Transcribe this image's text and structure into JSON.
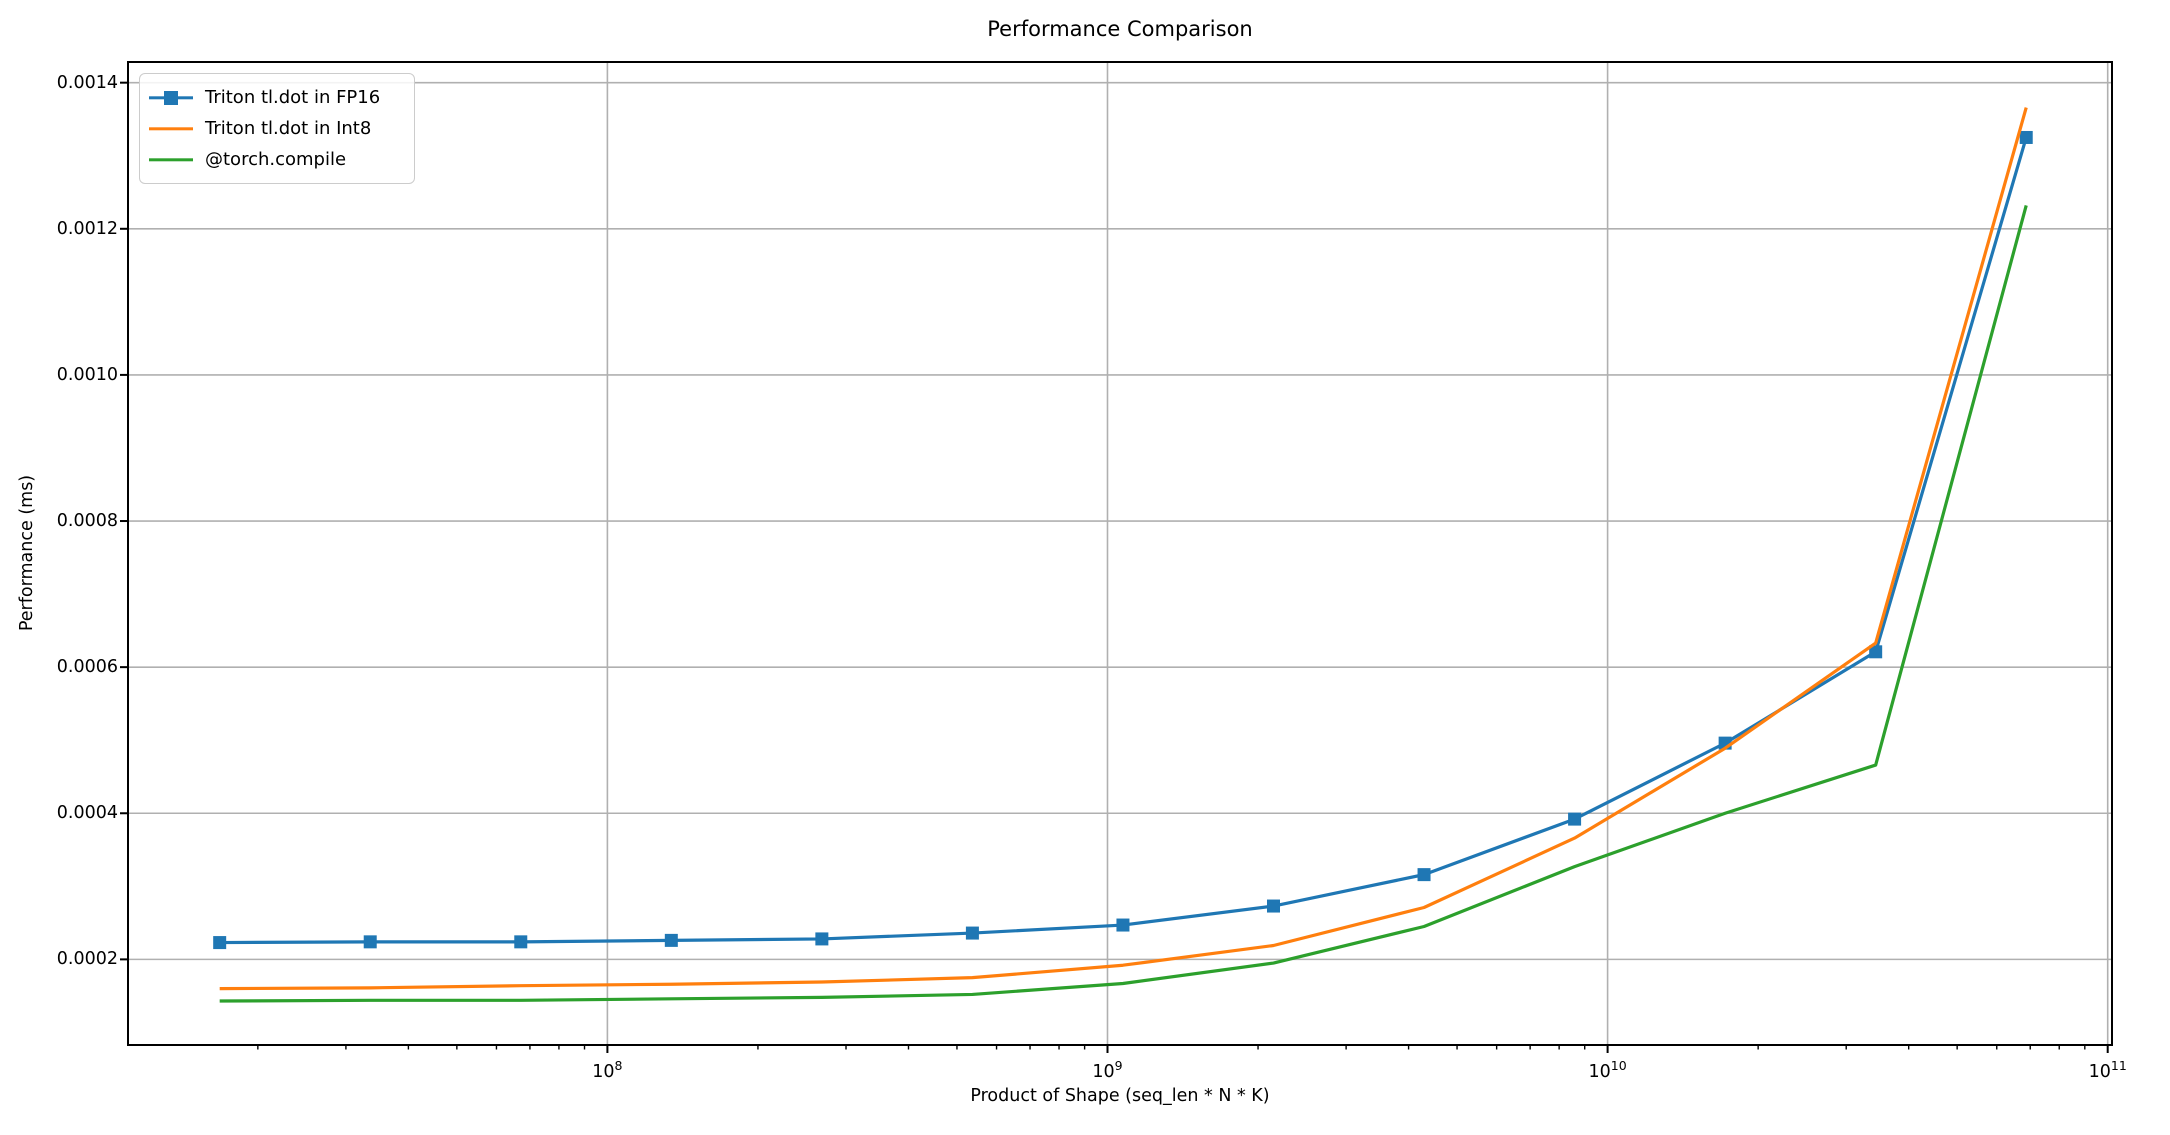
{
  "chart_data": {
    "type": "line",
    "title": "Performance Comparison",
    "xlabel": "Product of Shape (seq_len * N * K)",
    "ylabel": "Performance (ms)",
    "x_scale": "log",
    "grid": "major",
    "legend_position": "upper left",
    "xlim": [
      11000000,
      102000000000
    ],
    "ylim": [
      8.28e-05,
      0.0014283
    ],
    "x": [
      16777216,
      33554432,
      67108864,
      134217728,
      268435456,
      536870912,
      1073741824,
      2147483648,
      4294967296,
      8589934592,
      17179869184,
      34359738368,
      68719476736
    ],
    "series": [
      {
        "name": "Triton tl.dot in FP16",
        "color": "#1f77b4",
        "marker": "square",
        "values": [
          0.000223,
          0.000224,
          0.000224,
          0.000226,
          0.000228,
          0.000236,
          0.000247,
          0.000273,
          0.000316,
          0.000392,
          0.000496,
          0.000621,
          0.001325
        ]
      },
      {
        "name": "Triton tl.dot in Int8",
        "color": "#ff7f0e",
        "marker": "none",
        "values": [
          0.00016,
          0.000161,
          0.000164,
          0.000166,
          0.000169,
          0.000175,
          0.000192,
          0.000219,
          0.000271,
          0.000366,
          0.000489,
          0.000633,
          0.001366
        ]
      },
      {
        "name": "@torch.compile",
        "color": "#2ca02c",
        "marker": "none",
        "values": [
          0.000143,
          0.000144,
          0.000144,
          0.000146,
          0.000148,
          0.000152,
          0.000167,
          0.000195,
          0.000245,
          0.000327,
          0.0004,
          0.000466,
          0.001232
        ]
      }
    ],
    "x_tick_exponents": [
      8,
      9,
      10,
      11
    ],
    "y_ticks": [
      0.0002,
      0.0004,
      0.0006,
      0.0008,
      0.001,
      0.0012,
      0.0014
    ],
    "y_tick_labels": [
      "0.0002",
      "0.0004",
      "0.0006",
      "0.0008",
      "0.0010",
      "0.0012",
      "0.0014"
    ],
    "grid_color": "#b0b0b0",
    "spine_color": "#000000"
  }
}
